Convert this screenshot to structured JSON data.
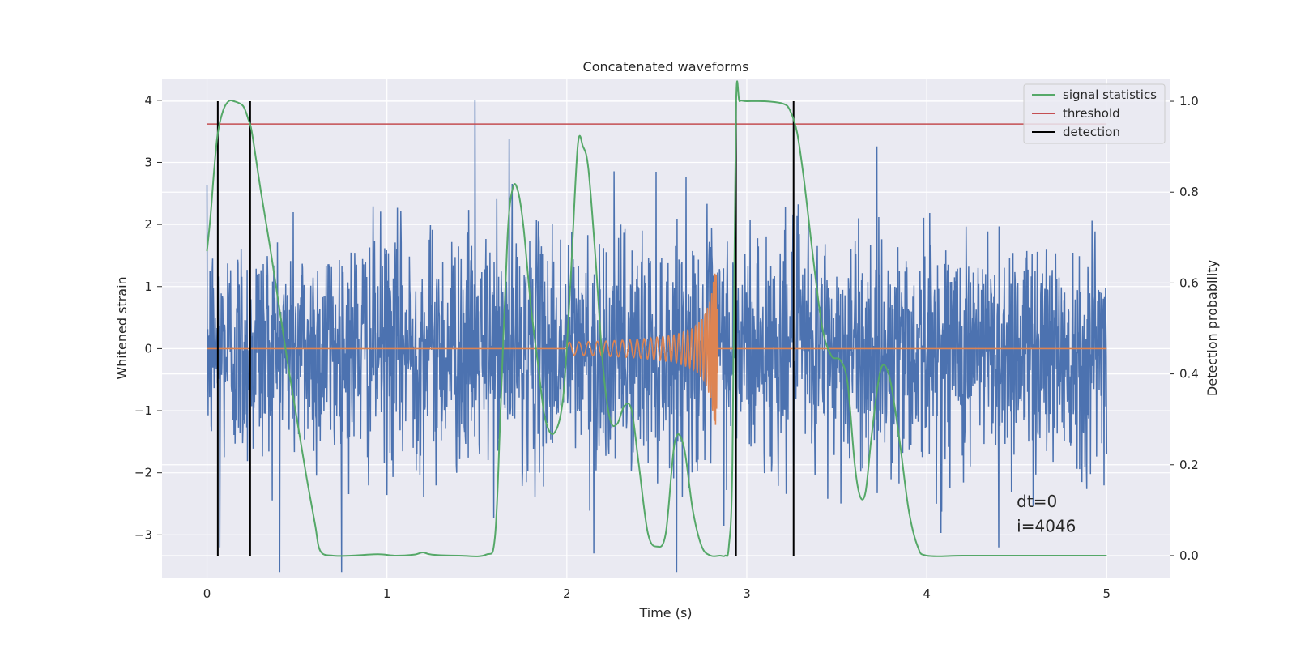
{
  "chart_data": {
    "type": "line",
    "title": "Concatenated waveforms",
    "xlabel": "Time (s)",
    "ylabel": "Whitened strain",
    "ylabel_right": "Detection probability",
    "xlim": [
      -0.25,
      5.35
    ],
    "ylim": [
      -3.7,
      4.35
    ],
    "ylim_right": [
      -0.05,
      1.05
    ],
    "xticks": [
      0,
      1,
      2,
      3,
      4,
      5
    ],
    "xtick_labels": [
      "0",
      "1",
      "2",
      "3",
      "4",
      "5"
    ],
    "yticks": [
      -3,
      -2,
      -1,
      0,
      1,
      2,
      3,
      4
    ],
    "ytick_labels": [
      "−3",
      "−2",
      "−1",
      "0",
      "1",
      "2",
      "3",
      "4"
    ],
    "yticks_right": [
      0.0,
      0.2,
      0.4,
      0.6,
      0.8,
      1.0
    ],
    "ytick_labels_right": [
      "0.0",
      "0.2",
      "0.4",
      "0.6",
      "0.8",
      "1.0"
    ],
    "grid": true,
    "legend_position": "top-right",
    "legend": [
      {
        "label": "signal statistics",
        "color": "#55a868"
      },
      {
        "label": "threshold",
        "color": "#c44e52"
      },
      {
        "label": "detection",
        "color": "#000000"
      }
    ],
    "colors": {
      "strain": "#4c72b0",
      "template": "#dd8452",
      "statistic": "#55a868",
      "threshold": "#c44e52",
      "detection": "#000000",
      "background": "#eaeaf2",
      "grid": "#ffffff"
    },
    "strain_noise": {
      "x_start": 0.0,
      "x_end": 5.0,
      "std": 0.95,
      "peak_values": [
        [
          1.49,
          4.0
        ],
        [
          0.07,
          -3.2
        ],
        [
          2.15,
          -3.3
        ],
        [
          4.4,
          -3.2
        ],
        [
          1.68,
          3.38
        ]
      ]
    },
    "template": {
      "x_start": 2.0,
      "x_end": 2.84,
      "x": [
        2.0,
        2.2,
        2.4,
        2.6,
        2.7,
        2.76,
        2.8,
        2.82,
        2.83,
        2.84
      ],
      "amplitude": [
        0.1,
        0.12,
        0.15,
        0.22,
        0.32,
        0.5,
        0.8,
        1.2,
        1.25,
        0.05
      ]
    },
    "threshold": {
      "y": 0.95,
      "x_start": 0.0,
      "x_end": 5.0
    },
    "detections": [
      0.06,
      0.24,
      2.94,
      3.26
    ],
    "detection_span": [
      0.0,
      1.0
    ],
    "statistic": {
      "x": [
        0.0,
        0.02,
        0.04,
        0.06,
        0.09,
        0.12,
        0.15,
        0.2,
        0.23,
        0.25,
        0.3,
        0.35,
        0.4,
        0.45,
        0.5,
        0.55,
        0.6,
        0.63,
        0.7,
        0.8,
        0.95,
        1.05,
        1.15,
        1.2,
        1.25,
        1.4,
        1.55,
        1.6,
        1.63,
        1.67,
        1.7,
        1.73,
        1.76,
        1.8,
        1.84,
        1.88,
        1.93,
        1.98,
        2.02,
        2.06,
        2.09,
        2.12,
        2.16,
        2.2,
        2.24,
        2.28,
        2.32,
        2.36,
        2.4,
        2.45,
        2.5,
        2.55,
        2.6,
        2.65,
        2.7,
        2.75,
        2.8,
        2.85,
        2.88,
        2.9,
        2.92,
        2.94,
        2.96,
        3.0,
        3.1,
        3.2,
        3.24,
        3.28,
        3.32,
        3.37,
        3.42,
        3.47,
        3.52,
        3.56,
        3.6,
        3.63,
        3.66,
        3.69,
        3.73,
        3.76,
        3.8,
        3.85,
        3.9,
        3.95,
        4.0,
        4.2,
        4.5,
        4.8,
        5.0
      ],
      "y": [
        0.67,
        0.75,
        0.85,
        0.93,
        0.98,
        1.0,
        1.0,
        0.99,
        0.96,
        0.93,
        0.8,
        0.68,
        0.55,
        0.42,
        0.3,
        0.18,
        0.07,
        0.01,
        0.0,
        0.0,
        0.003,
        0.0,
        0.002,
        0.007,
        0.002,
        0.0,
        0.002,
        0.04,
        0.3,
        0.7,
        0.81,
        0.8,
        0.72,
        0.55,
        0.42,
        0.3,
        0.27,
        0.35,
        0.6,
        0.9,
        0.9,
        0.85,
        0.65,
        0.42,
        0.3,
        0.29,
        0.33,
        0.32,
        0.2,
        0.05,
        0.02,
        0.05,
        0.25,
        0.24,
        0.1,
        0.02,
        0.0,
        0.0,
        0.0,
        0.02,
        0.2,
        0.98,
        1.0,
        1.0,
        1.0,
        0.995,
        0.98,
        0.93,
        0.82,
        0.65,
        0.5,
        0.44,
        0.43,
        0.38,
        0.2,
        0.13,
        0.14,
        0.25,
        0.38,
        0.42,
        0.38,
        0.25,
        0.1,
        0.02,
        0.0,
        0.0,
        0.0,
        0.0,
        0.0
      ]
    },
    "annotations": [
      {
        "text": "dt=0",
        "x": 4.5,
        "y": -2.55
      },
      {
        "text": "i=4046",
        "x": 4.5,
        "y": -2.95
      }
    ]
  }
}
